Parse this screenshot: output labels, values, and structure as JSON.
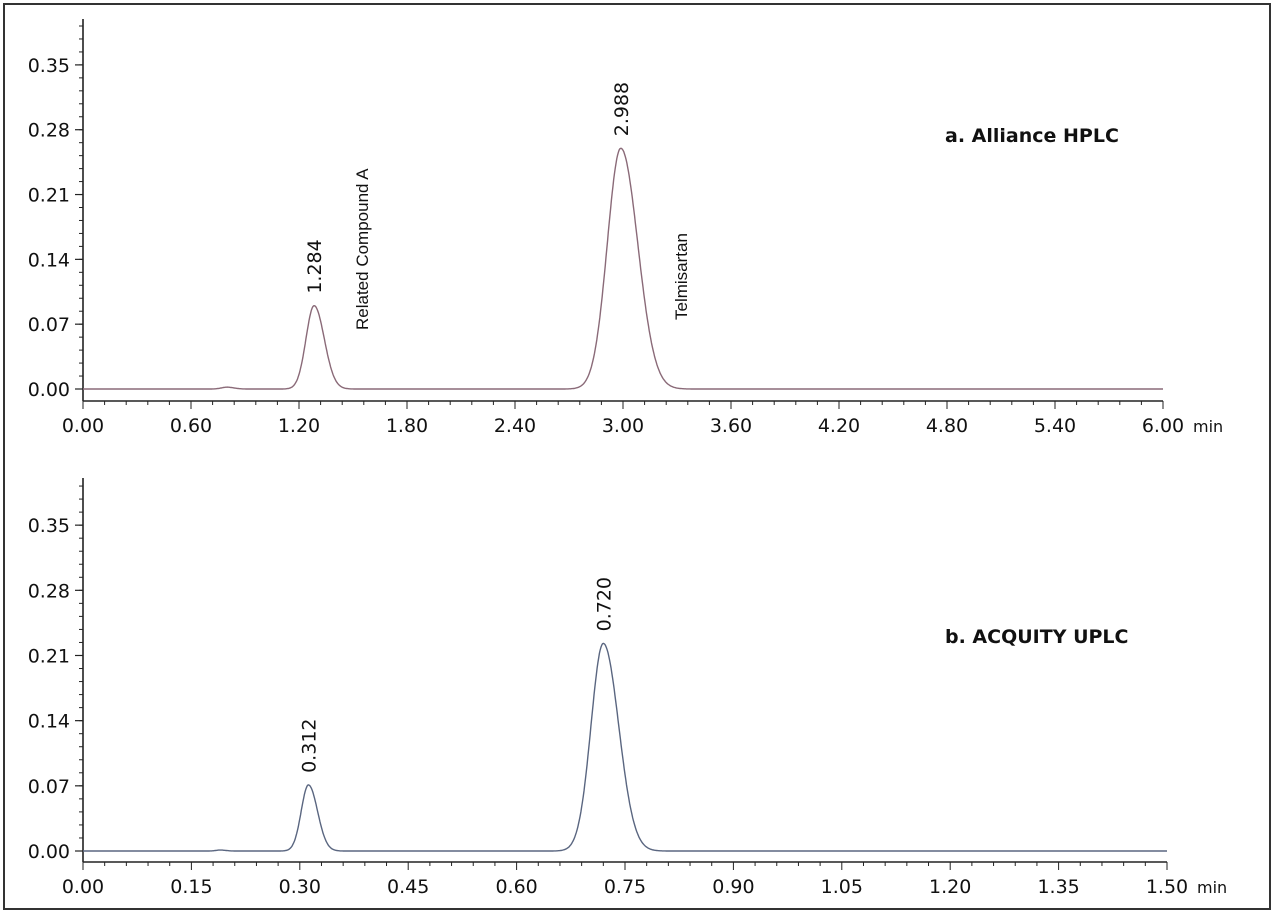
{
  "chart_data": [
    {
      "type": "line",
      "title": "a. Alliance HPLC",
      "xlabel": "min",
      "ylabel": "",
      "xlim": [
        0,
        6.0
      ],
      "ylim": [
        -0.012,
        0.4
      ],
      "x_ticks": [
        "0.00",
        "0.60",
        "1.20",
        "1.80",
        "2.40",
        "3.00",
        "3.60",
        "4.20",
        "4.80",
        "5.40",
        "6.00"
      ],
      "y_ticks": [
        "0.00",
        "0.07",
        "0.14",
        "0.21",
        "0.28",
        "0.35"
      ],
      "grid": false,
      "trace_color": "#8a6a78",
      "peaks": [
        {
          "rt": 1.284,
          "label": "1.284",
          "height": 0.09,
          "width": 0.045,
          "tail": 0.04,
          "compound": "Related Compound A"
        },
        {
          "rt": 2.988,
          "label": "2.988",
          "height": 0.26,
          "width": 0.075,
          "tail": 0.05,
          "compound": "Telmisartan"
        },
        {
          "rt": 0.8,
          "label": "",
          "height": 0.002,
          "width": 0.03,
          "tail": 0.02,
          "compound": ""
        }
      ]
    },
    {
      "type": "line",
      "title": "b. ACQUITY UPLC",
      "xlabel": "min",
      "ylabel": "",
      "xlim": [
        0,
        1.5
      ],
      "ylim": [
        -0.012,
        0.4
      ],
      "x_ticks": [
        "0.00",
        "0.15",
        "0.30",
        "0.45",
        "0.60",
        "0.75",
        "0.90",
        "1.05",
        "1.20",
        "1.35",
        "1.50"
      ],
      "y_ticks": [
        "0.00",
        "0.07",
        "0.14",
        "0.21",
        "0.28",
        "0.35"
      ],
      "grid": false,
      "trace_color": "#5a6680",
      "peaks": [
        {
          "rt": 0.312,
          "label": "0.312",
          "height": 0.071,
          "width": 0.01,
          "tail": 0.01,
          "compound": ""
        },
        {
          "rt": 0.72,
          "label": "0.720",
          "height": 0.223,
          "width": 0.017,
          "tail": 0.012,
          "compound": ""
        },
        {
          "rt": 0.19,
          "label": "",
          "height": 0.001,
          "width": 0.006,
          "tail": 0.004,
          "compound": ""
        }
      ]
    }
  ]
}
